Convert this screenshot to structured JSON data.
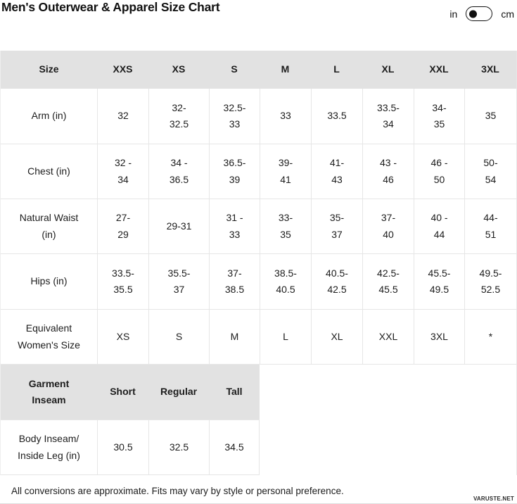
{
  "page": {
    "title": "Men's Outerwear & Apparel Size Chart",
    "footnote": "All conversions are approximate. Fits may vary by style or personal preference.",
    "watermark": "VARUSTE.NET"
  },
  "unit_toggle": {
    "left_label": "in",
    "right_label": "cm",
    "selected": "in"
  },
  "colors": {
    "header_bg": "#e2e2e2",
    "border": "#e6e6e6",
    "text": "#1c1c1c"
  },
  "size_chart": {
    "columns": [
      "Size",
      "XXS",
      "XS",
      "S",
      "M",
      "L",
      "XL",
      "XXL",
      "3XL"
    ],
    "rows": [
      {
        "label": "Arm (in)",
        "values": [
          "32",
          "32-\n32.5",
          "32.5-\n33",
          "33",
          "33.5",
          "33.5-\n34",
          "34-\n35",
          "35"
        ]
      },
      {
        "label": "Chest (in)",
        "values": [
          "32 -\n34",
          "34 -\n36.5",
          "36.5-\n39",
          "39-\n41",
          "41-\n43",
          "43 -\n46",
          "46 -\n50",
          "50-\n54"
        ]
      },
      {
        "label": "Natural Waist\n(in)",
        "values": [
          "27-\n29",
          "29-31",
          "31 -\n33",
          "33-\n35",
          "35-\n37",
          "37-\n40",
          "40 -\n44",
          "44-\n51"
        ]
      },
      {
        "label": "Hips (in)",
        "values": [
          "33.5-\n35.5",
          "35.5-\n37",
          "37-\n38.5",
          "38.5-\n40.5",
          "40.5-\n42.5",
          "42.5-\n45.5",
          "45.5-\n49.5",
          "49.5-\n52.5"
        ]
      },
      {
        "label": "Equivalent\nWomen's Size",
        "values": [
          "XS",
          "S",
          "M",
          "L",
          "XL",
          "XXL",
          "3XL",
          "*"
        ]
      }
    ],
    "inseam": {
      "header_label": "Garment\nInseam",
      "header_values": [
        "Short",
        "Regular",
        "Tall"
      ],
      "row_label": "Body Inseam/\nInside Leg (in)",
      "row_values": [
        "30.5",
        "32.5",
        "34.5"
      ]
    }
  }
}
